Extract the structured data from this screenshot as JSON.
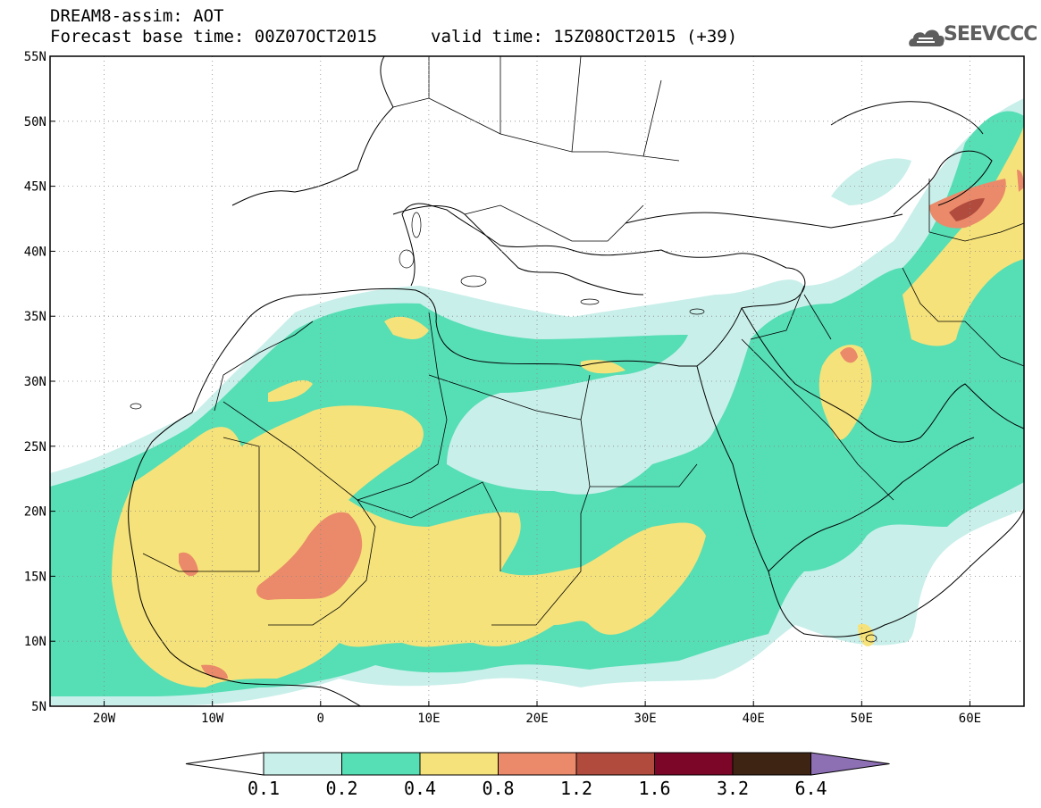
{
  "header": {
    "title_line1": "DREAM8-assim: AOT",
    "title_line2": "Forecast base time: 00Z07OCT2015",
    "valid_time": "valid time: 15Z08OCT2015 (+39)",
    "logo_text": "SEEVCCC"
  },
  "map": {
    "lat_labels": [
      "55N",
      "50N",
      "45N",
      "40N",
      "35N",
      "30N",
      "25N",
      "20N",
      "15N",
      "10N",
      "5N"
    ],
    "lon_labels": [
      "20W",
      "10W",
      "0",
      "10E",
      "20E",
      "30E",
      "40E",
      "50E",
      "60E"
    ],
    "extent": {
      "lon_min": -25,
      "lon_max": 65,
      "lat_min": 5,
      "lat_max": 55
    },
    "gridlines": "dotted"
  },
  "legend": {
    "levels": [
      "0.1",
      "0.2",
      "0.4",
      "0.8",
      "1.2",
      "1.6",
      "3.2",
      "6.4"
    ],
    "colors": [
      "#ffffff",
      "#c9efea",
      "#56deb5",
      "#f6e27a",
      "#ea8a6a",
      "#b14b3d",
      "#7c0628",
      "#3e2413",
      "#8d6fb4"
    ]
  }
}
